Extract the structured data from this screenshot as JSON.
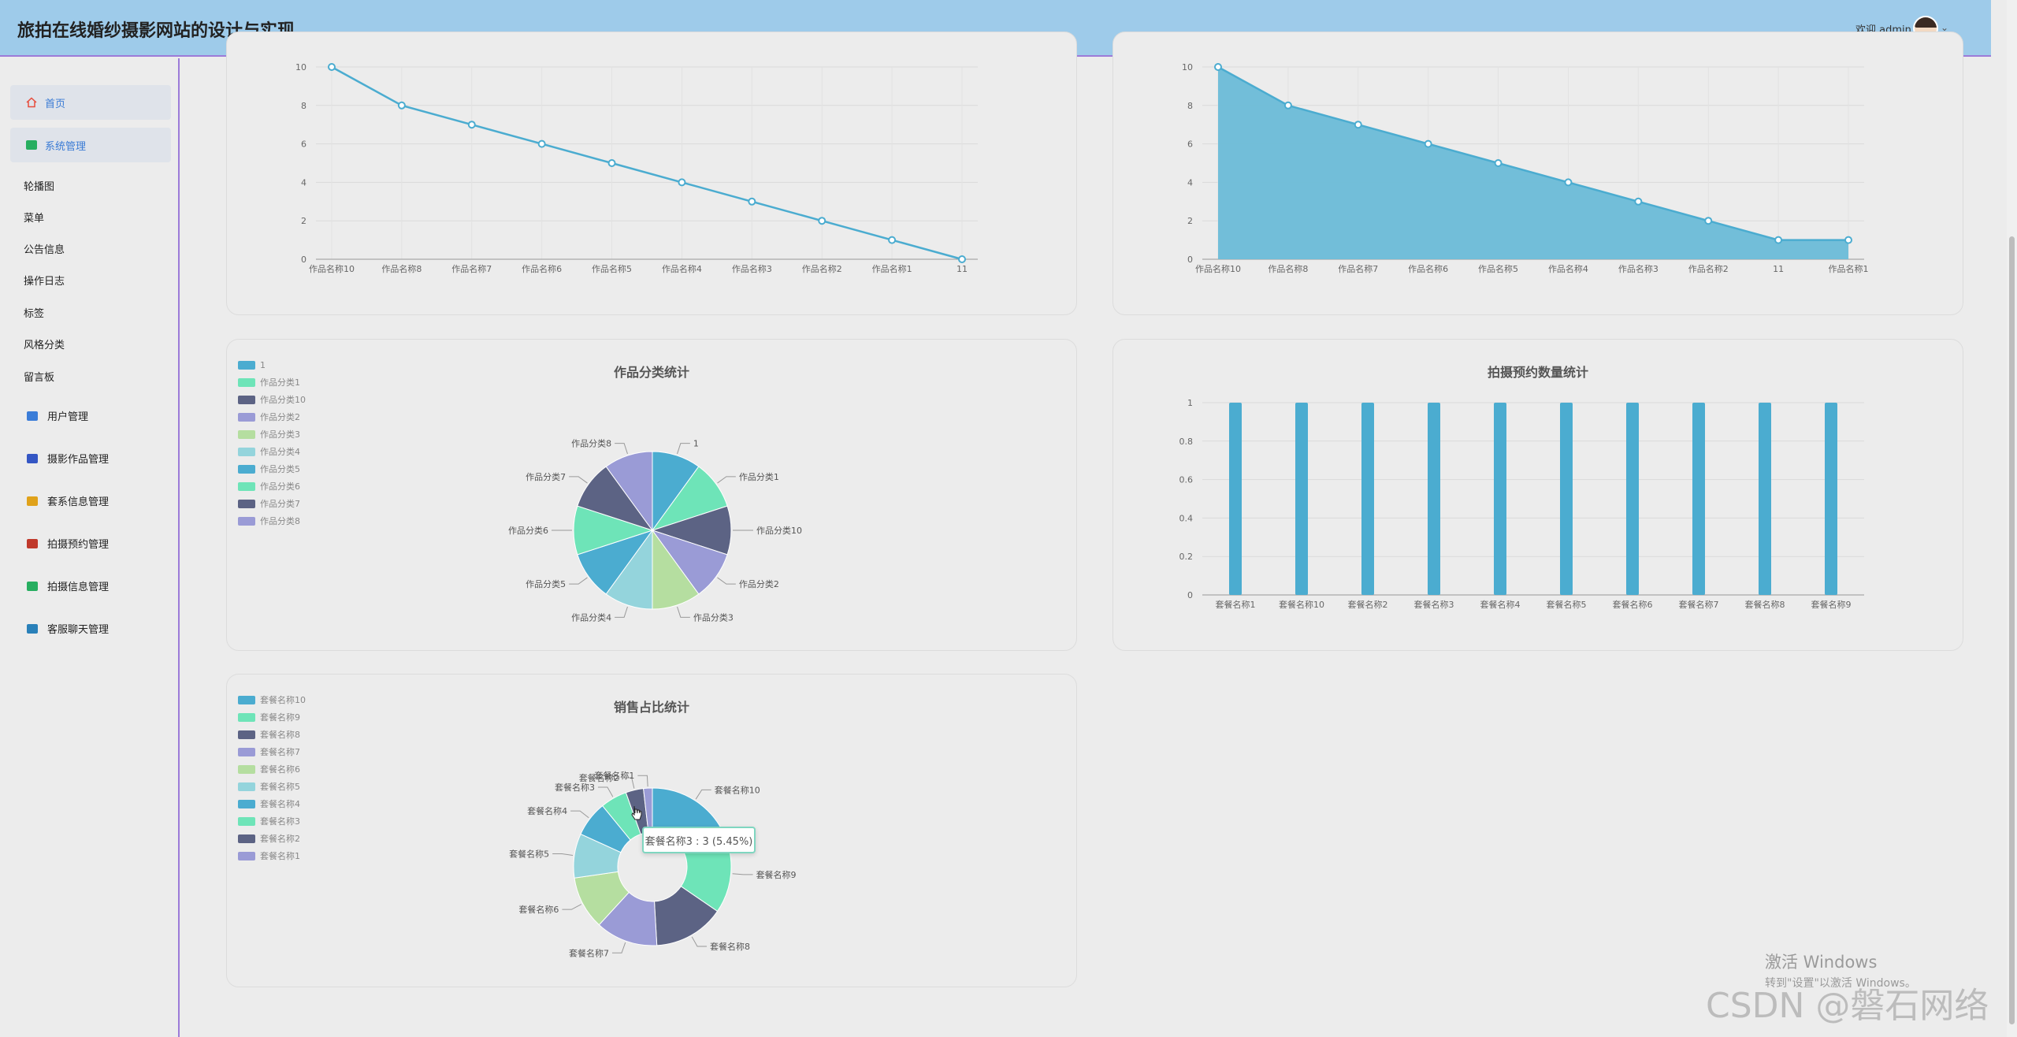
{
  "header": {
    "title": "旅拍在线婚纱摄影网站的设计与实现",
    "welcome": "欢迎 admin",
    "chevron": "⌄"
  },
  "sidebar": {
    "home": "首页",
    "system": "系统管理",
    "sub_items": [
      "轮播图",
      "菜单",
      "公告信息",
      "操作日志",
      "标签",
      "风格分类",
      "留言板"
    ],
    "modules": [
      {
        "label": "用户管理",
        "color": "#3b7dd8"
      },
      {
        "label": "摄影作品管理",
        "color": "#3456c4"
      },
      {
        "label": "套系信息管理",
        "color": "#e0a21a"
      },
      {
        "label": "拍摄预约管理",
        "color": "#c0392b"
      },
      {
        "label": "拍摄信息管理",
        "color": "#27ae60"
      },
      {
        "label": "客服聊天管理",
        "color": "#2980b9"
      }
    ]
  },
  "tooltip": "套餐名称3 : 3 (5.45%)",
  "watermark": {
    "line1": "激活 Windows",
    "line2": "转到\"设置\"以激活 Windows。",
    "csdn": "CSDN @磐石网络"
  },
  "colors": {
    "chart_blue": "#4bacd0",
    "palette": [
      "#4bacd0",
      "#6ee4b8",
      "#5c6384",
      "#9a9bd6",
      "#b5dea0",
      "#94d4dc"
    ]
  },
  "chart_data": [
    {
      "id": "line",
      "type": "line",
      "title": "",
      "categories": [
        "作品名称10",
        "作品名称8",
        "作品名称7",
        "作品名称6",
        "作品名称5",
        "作品名称4",
        "作品名称3",
        "作品名称2",
        "作品名称1",
        "11"
      ],
      "values": [
        10,
        8,
        7,
        6,
        5,
        4,
        3,
        2,
        1,
        0
      ],
      "ylim": [
        0,
        10
      ],
      "yticks": [
        0,
        2,
        4,
        6,
        8,
        10
      ],
      "grid": true
    },
    {
      "id": "area",
      "type": "area",
      "title": "",
      "categories": [
        "作品名称10",
        "作品名称8",
        "作品名称7",
        "作品名称6",
        "作品名称5",
        "作品名称4",
        "作品名称3",
        "作品名称2",
        "11",
        "作品名称1"
      ],
      "values": [
        10,
        8,
        7,
        6,
        5,
        4,
        3,
        2,
        1,
        1
      ],
      "ylim": [
        0,
        10
      ],
      "yticks": [
        0,
        2,
        4,
        6,
        8,
        10
      ],
      "grid": true
    },
    {
      "id": "pie1",
      "type": "pie",
      "title": "作品分类统计",
      "legend_position": "top-left",
      "categories": [
        "1",
        "作品分类1",
        "作品分类10",
        "作品分类2",
        "作品分类3",
        "作品分类4",
        "作品分类5",
        "作品分类6",
        "作品分类7",
        "作品分类8"
      ],
      "values": [
        1,
        1,
        1,
        1,
        1,
        1,
        1,
        1,
        1,
        1
      ]
    },
    {
      "id": "bar",
      "type": "bar",
      "title": "拍摄预约数量统计",
      "categories": [
        "套餐名称1",
        "套餐名称10",
        "套餐名称2",
        "套餐名称3",
        "套餐名称4",
        "套餐名称5",
        "套餐名称6",
        "套餐名称7",
        "套餐名称8",
        "套餐名称9"
      ],
      "values": [
        1,
        1,
        1,
        1,
        1,
        1,
        1,
        1,
        1,
        1
      ],
      "ylim": [
        0,
        1
      ],
      "yticks": [
        0,
        0.2,
        0.4,
        0.6,
        0.8,
        1
      ],
      "grid": true
    },
    {
      "id": "donut",
      "type": "pie",
      "title": "销售占比统计",
      "legend_position": "top-left",
      "categories": [
        "套餐名称10",
        "套餐名称9",
        "套餐名称8",
        "套餐名称7",
        "套餐名称6",
        "套餐名称5",
        "套餐名称4",
        "套餐名称3",
        "套餐名称2",
        "套餐名称1"
      ],
      "values": [
        10,
        9,
        8,
        7,
        6,
        5,
        4,
        3,
        2,
        1
      ]
    }
  ]
}
